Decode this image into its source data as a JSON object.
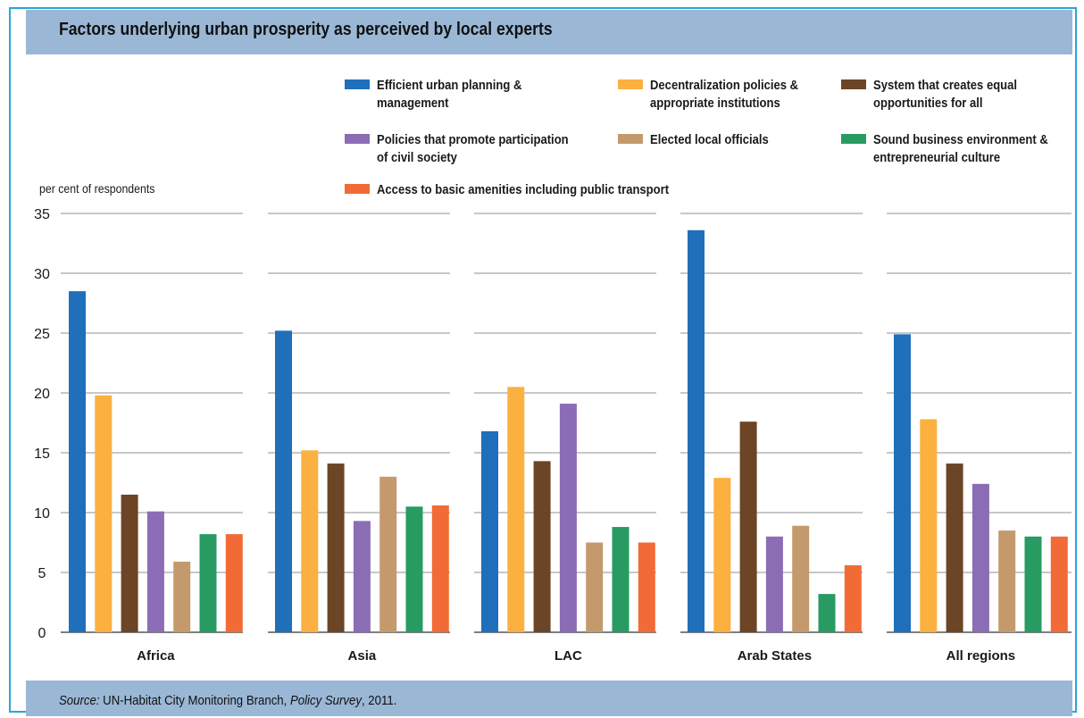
{
  "title": "Factors underlying urban prosperity as perceived by local experts",
  "source": {
    "prefix": "Source:",
    "org": " UN-Habitat City Monitoring Branch, ",
    "publication": "Policy Survey",
    "year": ", 2011."
  },
  "legend": [
    {
      "label": "Efficient urban planning &\nmanagement",
      "color": "#1f6fbb"
    },
    {
      "label": "Decentralization policies &\nappropriate institutions",
      "color": "#fbb040"
    },
    {
      "label": "System that creates equal\nopportunities for all",
      "color": "#6b4526"
    },
    {
      "label": "Policies that promote participation\nof civil society",
      "color": "#8b6db5"
    },
    {
      "label": "Elected local officials",
      "color": "#c49a6c"
    },
    {
      "label": "Sound business environment &\nentrepreneurial culture",
      "color": "#279b61"
    },
    {
      "label": "Access to basic amenities including public transport",
      "color": "#f26b36"
    }
  ],
  "chart_data": {
    "type": "bar",
    "ylabel": "per cent of respondents",
    "xlabel": "",
    "ylim": [
      0,
      35
    ],
    "yticks": [
      "0",
      "5",
      "10",
      "15",
      "20",
      "25",
      "30",
      "35"
    ],
    "grid": true,
    "legend_position": "top",
    "categories": [
      "Africa",
      "Asia",
      "LAC",
      "Arab States",
      "All regions"
    ],
    "series": [
      {
        "name": "Efficient urban planning & management",
        "color": "#1f6fbb",
        "values": [
          28.5,
          25.2,
          16.8,
          33.6,
          24.9
        ]
      },
      {
        "name": "Decentralization policies & appropriate institutions",
        "color": "#fbb040",
        "values": [
          19.8,
          15.2,
          20.5,
          12.9,
          17.8
        ]
      },
      {
        "name": "System that creates equal opportunities for all",
        "color": "#6b4526",
        "values": [
          11.5,
          14.1,
          14.3,
          17.6,
          14.1
        ]
      },
      {
        "name": "Policies that promote participation of civil society",
        "color": "#8b6db5",
        "values": [
          10.1,
          9.3,
          19.1,
          8.0,
          12.4
        ]
      },
      {
        "name": "Elected local officials",
        "color": "#c49a6c",
        "values": [
          5.9,
          13.0,
          7.5,
          8.9,
          8.5
        ]
      },
      {
        "name": "Sound business environment & entrepreneurial culture",
        "color": "#279b61",
        "values": [
          8.2,
          10.5,
          8.8,
          3.2,
          8.0
        ]
      },
      {
        "name": "Access to basic amenities including public transport",
        "color": "#f26b36",
        "values": [
          8.2,
          10.6,
          7.5,
          5.6,
          8.0
        ]
      }
    ]
  }
}
